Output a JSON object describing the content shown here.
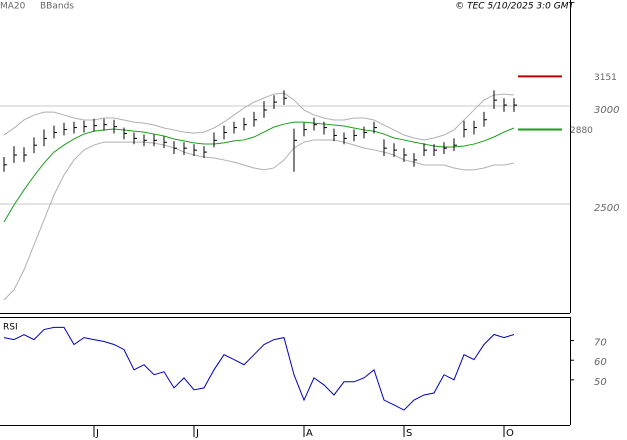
{
  "chart_data": [
    {
      "type": "ohlc",
      "source": "© TEC 5/10/2025 3:0 GMT",
      "categories": [
        null,
        null,
        null,
        null,
        null,
        null,
        null,
        null,
        null,
        "J",
        null,
        null,
        null,
        null,
        null,
        null,
        null,
        null,
        null,
        "J",
        null,
        null,
        null,
        null,
        null,
        null,
        null,
        null,
        null,
        null,
        "A",
        null,
        null,
        null,
        null,
        null,
        null,
        null,
        null,
        null,
        "S",
        null,
        null,
        null,
        null,
        null,
        null,
        null,
        null,
        null,
        "O",
        null
      ],
      "high": [
        2740,
        2795,
        2790,
        2840,
        2880,
        2900,
        2915,
        2920,
        2925,
        2935,
        2935,
        2930,
        2890,
        2865,
        2855,
        2855,
        2845,
        2820,
        2815,
        2805,
        2795,
        2865,
        2900,
        2920,
        2940,
        2970,
        3025,
        3055,
        3080,
        2885,
        2915,
        2940,
        2920,
        2885,
        2865,
        2880,
        2895,
        2920,
        2830,
        2810,
        2785,
        2760,
        2810,
        2805,
        2815,
        2835,
        2925,
        2925,
        2970,
        3080,
        3040,
        3040
      ],
      "low": [
        2665,
        2710,
        2715,
        2760,
        2795,
        2835,
        2850,
        2860,
        2865,
        2870,
        2875,
        2860,
        2830,
        2805,
        2795,
        2795,
        2785,
        2755,
        2750,
        2745,
        2735,
        2790,
        2830,
        2860,
        2875,
        2895,
        2940,
        2985,
        3005,
        2665,
        2845,
        2875,
        2855,
        2820,
        2805,
        2820,
        2835,
        2860,
        2745,
        2740,
        2715,
        2690,
        2745,
        2745,
        2755,
        2770,
        2840,
        2855,
        2895,
        2985,
        2970,
        2970
      ],
      "close": [
        2700,
        2750,
        2750,
        2800,
        2835,
        2865,
        2880,
        2890,
        2895,
        2900,
        2905,
        2895,
        2860,
        2835,
        2825,
        2825,
        2815,
        2785,
        2785,
        2775,
        2765,
        2825,
        2865,
        2890,
        2905,
        2930,
        2980,
        3020,
        3040,
        2825,
        2880,
        2905,
        2890,
        2850,
        2835,
        2850,
        2865,
        2890,
        2785,
        2775,
        2750,
        2725,
        2775,
        2775,
        2785,
        2800,
        2880,
        2890,
        2930,
        3030,
        3005,
        3005
      ],
      "color": "#000000",
      "series": [
        {
          "name": "MA20",
          "color": "#1a9e1a",
          "values": [
            2408,
            2495,
            2572,
            2643,
            2709,
            2765,
            2801,
            2832,
            2857,
            2872,
            2878,
            2883,
            2878,
            2872,
            2867,
            2857,
            2847,
            2832,
            2822,
            2812,
            2806,
            2806,
            2812,
            2822,
            2827,
            2842,
            2867,
            2893,
            2908,
            2918,
            2918,
            2913,
            2908,
            2903,
            2898,
            2888,
            2878,
            2872,
            2857,
            2837,
            2827,
            2816,
            2806,
            2796,
            2791,
            2791,
            2796,
            2806,
            2822,
            2842,
            2867,
            2888
          ]
        }
      ],
      "bbands": {
        "name": "BBands",
        "color": "#b0b0b0",
        "upper": [
          2852,
          2888,
          2929,
          2954,
          2969,
          2969,
          2954,
          2939,
          2929,
          2929,
          2939,
          2939,
          2929,
          2918,
          2913,
          2903,
          2888,
          2878,
          2867,
          2862,
          2867,
          2888,
          2918,
          2954,
          2990,
          3020,
          3041,
          3061,
          3066,
          3031,
          2980,
          2954,
          2939,
          2929,
          2929,
          2939,
          2939,
          2929,
          2903,
          2878,
          2852,
          2837,
          2827,
          2837,
          2852,
          2878,
          2929,
          2980,
          3031,
          3056,
          3061,
          3056
        ],
        "lower": [
          2011,
          2062,
          2164,
          2291,
          2419,
          2546,
          2648,
          2725,
          2776,
          2801,
          2816,
          2816,
          2816,
          2816,
          2816,
          2811,
          2801,
          2786,
          2765,
          2750,
          2740,
          2735,
          2725,
          2714,
          2699,
          2684,
          2674,
          2684,
          2725,
          2786,
          2816,
          2827,
          2827,
          2827,
          2816,
          2801,
          2786,
          2776,
          2765,
          2750,
          2725,
          2714,
          2699,
          2699,
          2699,
          2684,
          2674,
          2674,
          2684,
          2699,
          2699,
          2709
        ]
      },
      "markers": [
        {
          "value": 3151,
          "color": "#c00000"
        },
        {
          "value": 2880,
          "color": "#1a9e1a"
        }
      ],
      "ylim": [
        1944,
        3541
      ],
      "yticks": [
        2500,
        3000
      ],
      "grid": true
    },
    {
      "type": "line",
      "title": "RSI",
      "color": "#0000c0",
      "values": [
        71.5,
        70.5,
        73,
        70.5,
        75.6,
        76.7,
        76.7,
        68,
        71.5,
        70.5,
        69.5,
        68,
        65.4,
        55.1,
        57.7,
        52.6,
        54.1,
        45.9,
        51,
        44.9,
        45.9,
        55.1,
        62.8,
        60.3,
        57.7,
        62.8,
        68,
        70.5,
        71.5,
        52.6,
        39.7,
        51,
        47.4,
        42.3,
        49,
        49,
        51,
        55.1,
        39.7,
        37.2,
        34.6,
        39.7,
        42.3,
        43.3,
        52.6,
        50,
        62.8,
        60.3,
        68,
        73.1,
        71.5,
        73.1
      ],
      "ylim": [
        27,
        82
      ],
      "yticks": [
        50,
        60,
        70
      ]
    }
  ]
}
